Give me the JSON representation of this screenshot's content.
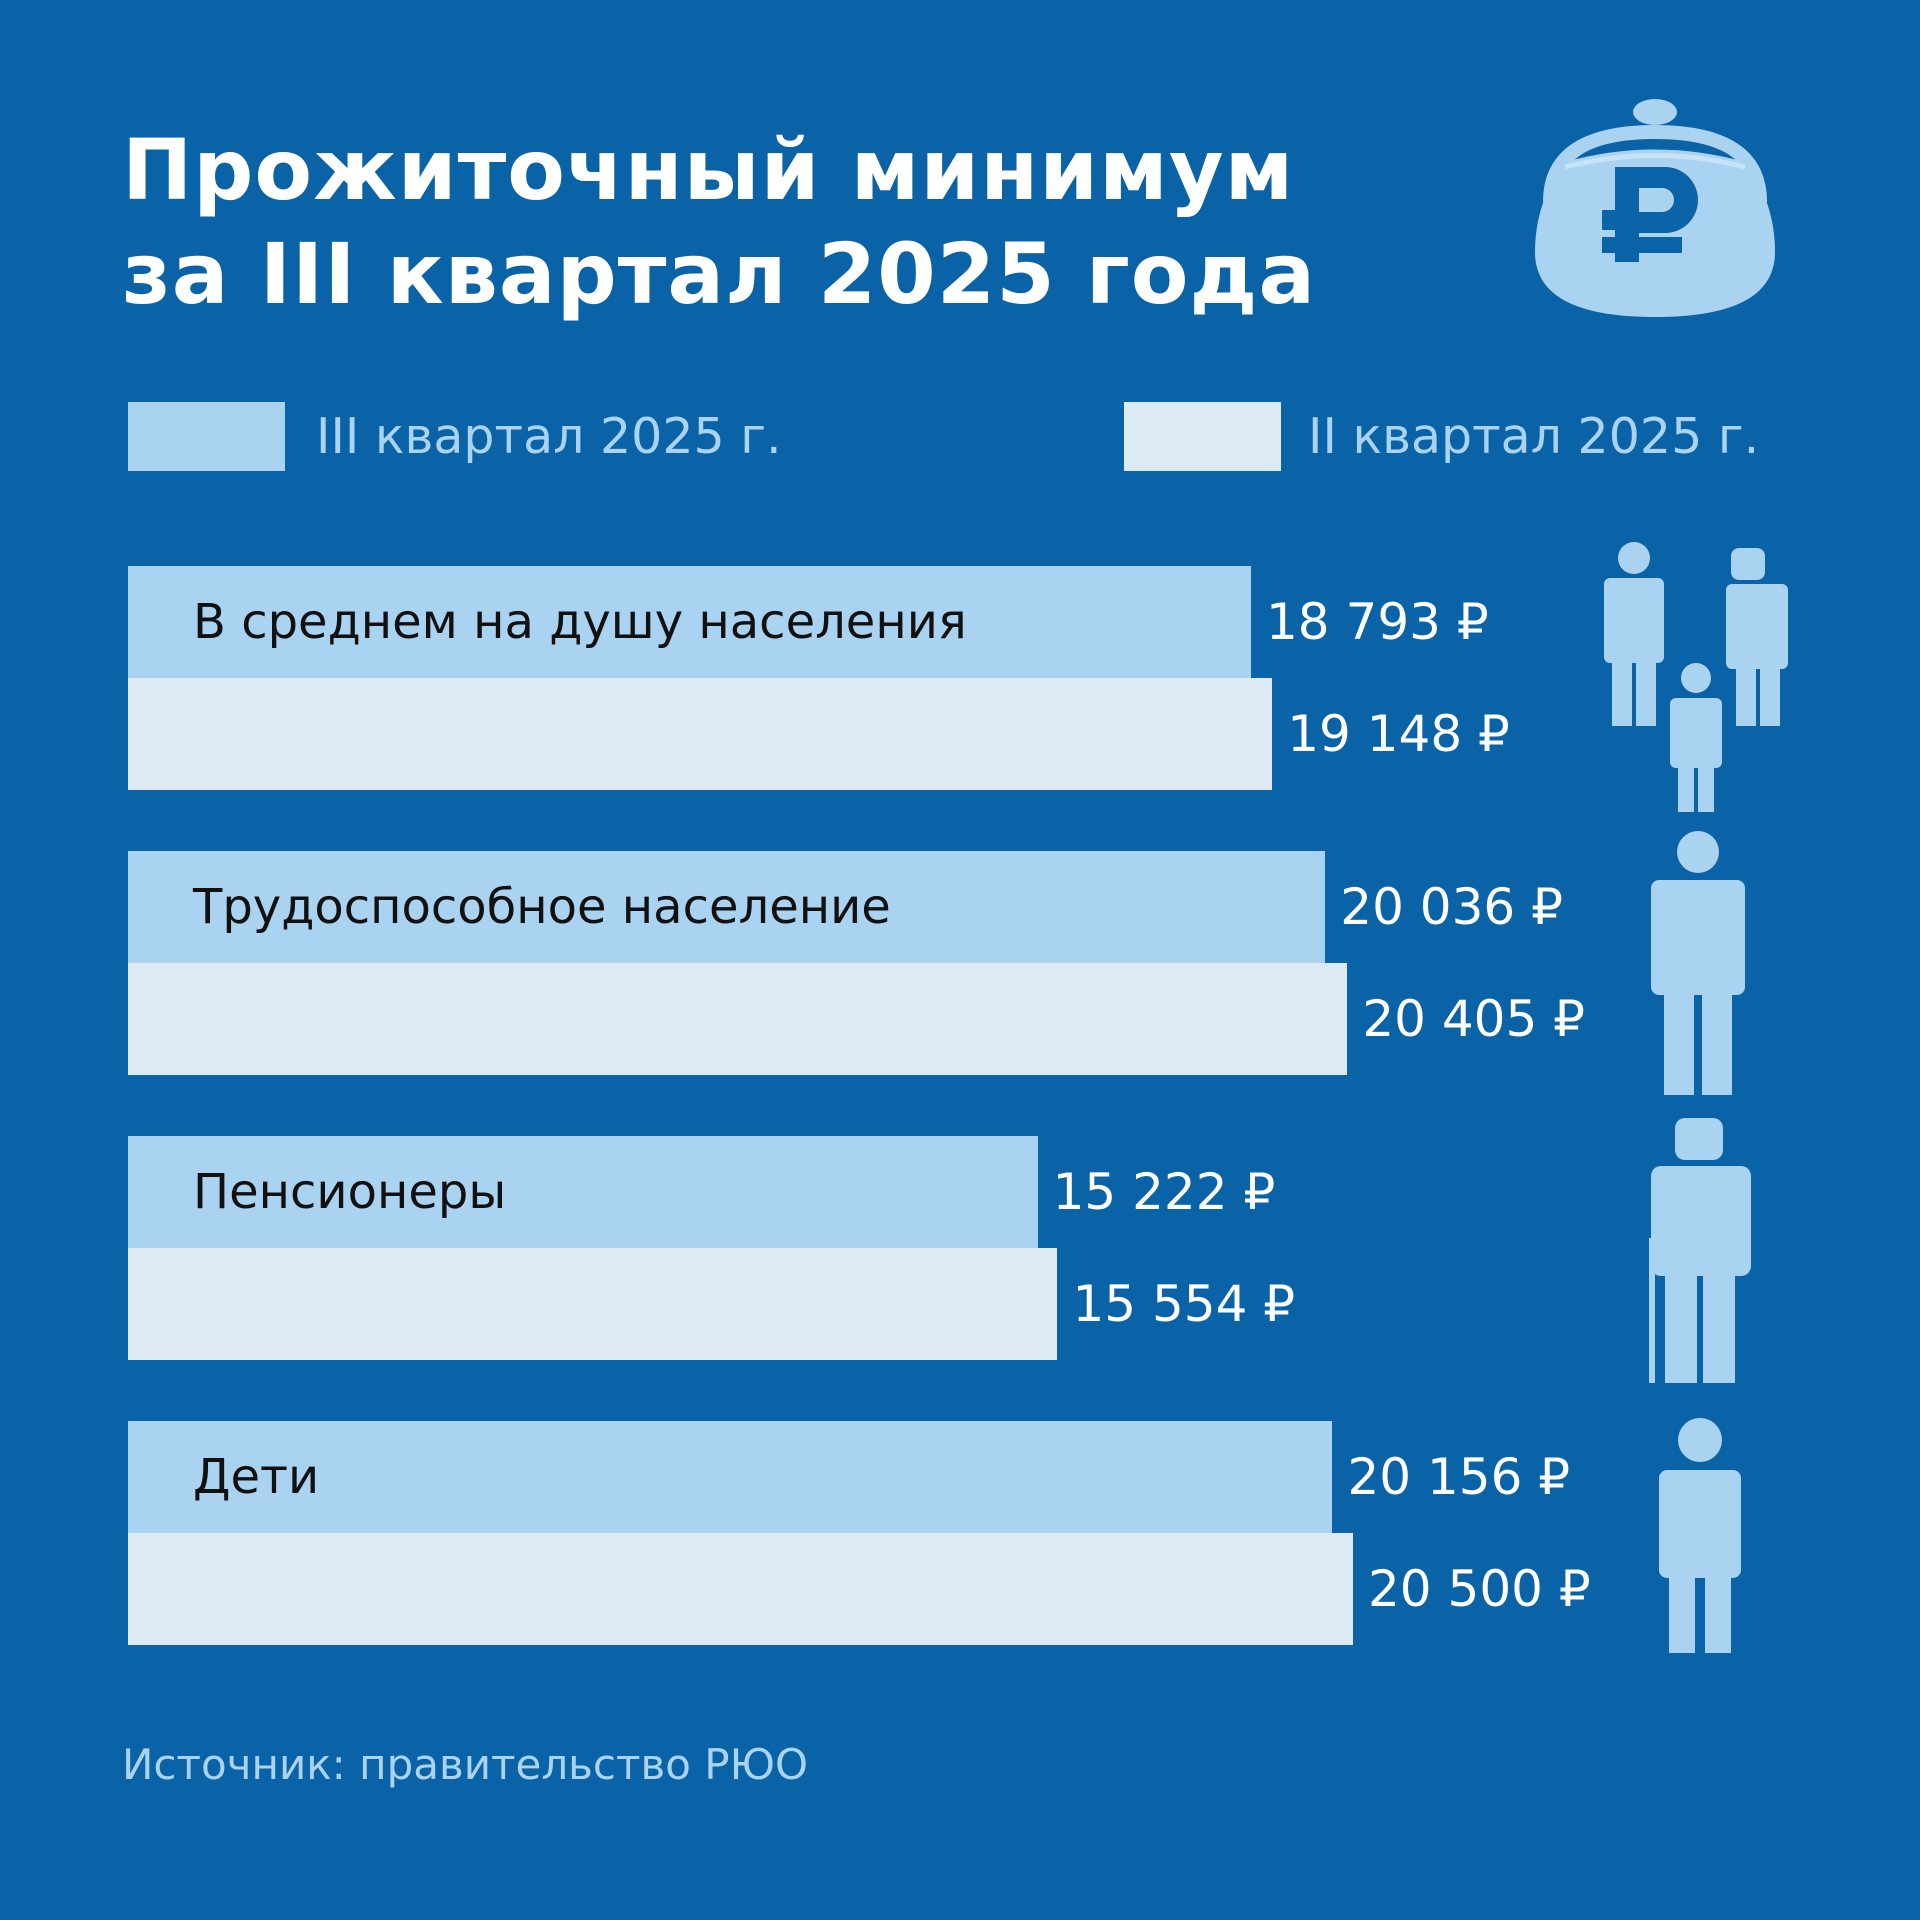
{
  "header": {
    "title_line1": "Прожиточный минимум",
    "title_line2": "за III квартал 2025 года",
    "icon": "purse-ruble-icon"
  },
  "colors": {
    "background": "#0b63a7",
    "q3": "#a9d3f0",
    "q2": "#dde9f3",
    "label_text": "#111111",
    "value_text": "#ffffff"
  },
  "chart_data": {
    "type": "bar",
    "orientation": "horizontal",
    "categories": [
      "В среднем на душу населения",
      "Трудоспособное население",
      "Пенсионеры",
      "Дети"
    ],
    "category_icons": [
      "family-icon",
      "worker-icon",
      "pensioner-icon",
      "child-icon"
    ],
    "series": [
      {
        "name": "III квартал 2025 г.",
        "values": [
          18793,
          20036,
          15222,
          20156
        ],
        "labels": [
          "18 793 ₽",
          "20 036 ₽",
          "15 222 ₽",
          "20 156 ₽"
        ]
      },
      {
        "name": "II квартал 2025 г.",
        "values": [
          19148,
          20405,
          15554,
          20500
        ],
        "labels": [
          "19 148 ₽",
          "20 405 ₽",
          "15 554 ₽",
          "20 500 ₽"
        ]
      }
    ],
    "unit": "₽",
    "grid": false,
    "legend_position": "top"
  },
  "footer": {
    "source": "Источник: правительство РЮО"
  }
}
